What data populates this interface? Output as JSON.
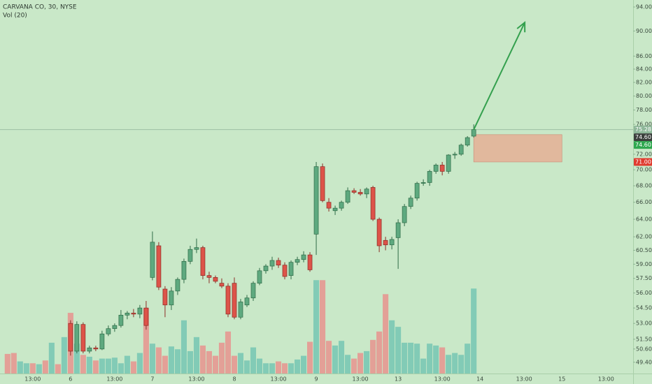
{
  "chart_data": {
    "type": "candlestick",
    "title": "CARVANA CO, 30, NYSE",
    "subtitle": "Vol (20)",
    "log_scale": true,
    "ylim": [
      48.4,
      95.2
    ],
    "xlim": [
      -1.2,
      99.3
    ],
    "vlim": [
      0,
      100
    ],
    "up_color": "#5ea97f",
    "down_color": "#dd5349",
    "up_edge": "#2f6b47",
    "down_edge": "#8c2c25",
    "yticks": [
      {
        "value": 94,
        "label": "94.00"
      },
      {
        "value": 90,
        "label": "90.00"
      },
      {
        "value": 86,
        "label": "86.00"
      },
      {
        "value": 84,
        "label": "84.00"
      },
      {
        "value": 82,
        "label": "82.00"
      },
      {
        "value": 80,
        "label": "80.00"
      },
      {
        "value": 78,
        "label": "78.00"
      },
      {
        "value": 76,
        "label": "76.00"
      },
      {
        "value": 72,
        "label": "72.00"
      },
      {
        "value": 70,
        "label": "70.00"
      },
      {
        "value": 68,
        "label": "68.00"
      },
      {
        "value": 66,
        "label": "66.00"
      },
      {
        "value": 64,
        "label": "64.00"
      },
      {
        "value": 62,
        "label": "62.00"
      },
      {
        "value": 60.5,
        "label": "60.50"
      },
      {
        "value": 59,
        "label": "59.00"
      },
      {
        "value": 57.5,
        "label": "57.50"
      },
      {
        "value": 56,
        "label": "56.00"
      },
      {
        "value": 54.5,
        "label": "54.50"
      },
      {
        "value": 53,
        "label": "53.00"
      },
      {
        "value": 51.5,
        "label": "51.50"
      },
      {
        "value": 50.6,
        "label": "50.60"
      },
      {
        "value": 49.4,
        "label": "49.40"
      }
    ],
    "xticks": [
      {
        "value": 4,
        "label": "13:00"
      },
      {
        "value": 10,
        "label": "6"
      },
      {
        "value": 17,
        "label": "13:00"
      },
      {
        "value": 23,
        "label": "7"
      },
      {
        "value": 30,
        "label": "13:00"
      },
      {
        "value": 36,
        "label": "8"
      },
      {
        "value": 43,
        "label": "13:00"
      },
      {
        "value": 49,
        "label": "9"
      },
      {
        "value": 56,
        "label": "13:00"
      },
      {
        "value": 62,
        "label": "13"
      },
      {
        "value": 69,
        "label": "13:00"
      },
      {
        "value": 75,
        "label": "14"
      },
      {
        "value": 82,
        "label": "13:00"
      },
      {
        "value": 88,
        "label": "15"
      },
      {
        "value": 95,
        "label": "13:00"
      }
    ],
    "open": [
      null,
      null,
      null,
      null,
      null,
      null,
      null,
      null,
      null,
      null,
      53.0,
      50.4,
      52.9,
      50.4,
      50.7,
      50.6,
      52.0,
      52.5,
      52.8,
      53.8,
      54.0,
      53.9,
      54.5,
      57.6,
      61.0,
      56.4,
      54.8,
      56.2,
      57.4,
      59.3,
      60.6,
      60.8,
      57.8,
      57.6,
      57.0,
      56.7,
      57.0,
      53.6,
      54.8,
      55.5,
      57.0,
      58.3,
      58.8,
      59.4,
      58.9,
      57.8,
      59.2,
      59.5,
      60.0,
      62.3,
      70.4,
      66.0,
      65.0,
      65.3,
      66.0,
      67.4,
      67.2,
      67.0,
      67.8,
      64.0,
      61.6,
      61.1,
      61.9,
      63.6,
      65.5,
      66.5,
      68.3,
      68.4,
      69.8,
      70.6,
      69.8,
      71.9,
      72.0,
      73.2,
      74.4
    ],
    "high": [
      null,
      null,
      null,
      null,
      null,
      null,
      null,
      null,
      null,
      null,
      53.3,
      53.2,
      53.1,
      50.9,
      50.9,
      52.3,
      52.8,
      53.0,
      54.3,
      54.2,
      54.4,
      54.8,
      55.2,
      62.6,
      61.4,
      56.7,
      56.6,
      57.6,
      59.6,
      61.0,
      61.8,
      61.0,
      58.2,
      57.8,
      57.5,
      57.0,
      57.6,
      55.4,
      55.8,
      57.2,
      58.6,
      59.0,
      59.8,
      59.7,
      59.2,
      59.4,
      59.8,
      60.4,
      60.3,
      71.0,
      70.8,
      66.5,
      65.6,
      66.2,
      67.8,
      67.7,
      67.6,
      67.8,
      68.0,
      64.2,
      62.0,
      62.0,
      64.0,
      65.8,
      66.8,
      68.5,
      68.8,
      70.0,
      70.8,
      71.0,
      72.0,
      72.3,
      73.4,
      74.4,
      76.0
    ],
    "low": [
      null,
      null,
      null,
      null,
      null,
      null,
      null,
      null,
      null,
      null,
      50.0,
      50.2,
      50.2,
      50.2,
      50.4,
      50.5,
      51.8,
      52.2,
      52.6,
      53.4,
      53.6,
      53.5,
      52.4,
      57.3,
      56.3,
      53.6,
      54.3,
      55.8,
      57.0,
      59.0,
      60.2,
      57.4,
      57.0,
      57.0,
      56.5,
      53.6,
      53.4,
      53.4,
      54.6,
      55.2,
      56.8,
      58.0,
      58.4,
      58.6,
      57.4,
      57.4,
      58.9,
      59.2,
      58.2,
      60.0,
      66.0,
      64.9,
      64.5,
      65.0,
      65.8,
      67.0,
      66.8,
      66.5,
      63.8,
      60.3,
      60.5,
      60.6,
      58.5,
      63.2,
      65.2,
      66.2,
      68.0,
      68.0,
      69.5,
      69.3,
      69.5,
      71.4,
      71.8,
      73.0,
      74.2
    ],
    "close": [
      null,
      null,
      null,
      null,
      null,
      null,
      null,
      null,
      null,
      null,
      50.4,
      52.9,
      50.4,
      50.7,
      50.6,
      52.0,
      52.5,
      52.8,
      53.8,
      54.0,
      53.9,
      54.5,
      52.8,
      61.4,
      56.6,
      54.8,
      56.2,
      57.4,
      59.3,
      60.6,
      60.8,
      57.8,
      57.6,
      57.2,
      56.7,
      53.9,
      53.6,
      55.1,
      55.5,
      57.0,
      58.3,
      58.8,
      59.4,
      58.9,
      57.7,
      59.2,
      59.5,
      60.0,
      58.4,
      70.4,
      66.2,
      65.3,
      65.3,
      66.0,
      67.4,
      67.2,
      67.0,
      67.6,
      64.0,
      61.0,
      61.1,
      61.7,
      63.6,
      65.5,
      66.5,
      68.3,
      68.4,
      69.8,
      70.6,
      69.8,
      71.9,
      72.0,
      73.2,
      74.2,
      75.28
    ],
    "volume": [
      21,
      22,
      13,
      11,
      11,
      10,
      14,
      33,
      10,
      39,
      65,
      32,
      20,
      18,
      14,
      16,
      16,
      17,
      11,
      19,
      13,
      22,
      70,
      32,
      28,
      19,
      29,
      26,
      57,
      24,
      39,
      30,
      24,
      19,
      33,
      45,
      19,
      22,
      14,
      28,
      16,
      11,
      11,
      13,
      11,
      11,
      15,
      19,
      34,
      100,
      100,
      35,
      30,
      35,
      20,
      16,
      22,
      24,
      36,
      45,
      85,
      57,
      50,
      33,
      33,
      32,
      16,
      32,
      30,
      28,
      20,
      22,
      20,
      32,
      91
    ],
    "volume_colors": [
      "#e3a097",
      "#e3a097",
      "#82cbb6",
      "#82cbb6",
      "#e3a097",
      "#82cbb6",
      "#e3a097",
      "#82cbb6",
      "#e3a097",
      "#82cbb6",
      "#e3a097",
      "#82cbb6",
      "#e3a097",
      "#82cbb6",
      "#e3a097",
      "#82cbb6",
      "#82cbb6",
      "#82cbb6",
      "#82cbb6",
      "#82cbb6",
      "#e3a097",
      "#82cbb6",
      "#e3a097",
      "#82cbb6",
      "#e3a097",
      "#e3a097",
      "#82cbb6",
      "#82cbb6",
      "#82cbb6",
      "#82cbb6",
      "#82cbb6",
      "#e3a097",
      "#e3a097",
      "#e3a097",
      "#e3a097",
      "#e3a097",
      "#e3a097",
      "#82cbb6",
      "#82cbb6",
      "#82cbb6",
      "#82cbb6",
      "#82cbb6",
      "#82cbb6",
      "#e3a097",
      "#e3a097",
      "#82cbb6",
      "#82cbb6",
      "#82cbb6",
      "#e3a097",
      "#82cbb6",
      "#e3a097",
      "#e3a097",
      "#82cbb6",
      "#82cbb6",
      "#82cbb6",
      "#e3a097",
      "#e3a097",
      "#82cbb6",
      "#e3a097",
      "#e3a097",
      "#e3a097",
      "#82cbb6",
      "#82cbb6",
      "#82cbb6",
      "#82cbb6",
      "#82cbb6",
      "#82cbb6",
      "#82cbb6",
      "#82cbb6",
      "#e3a097",
      "#82cbb6",
      "#82cbb6",
      "#82cbb6",
      "#82cbb6",
      "#82cbb6"
    ],
    "price_line": {
      "value": 75.28,
      "color": "#9dbfa3"
    },
    "price_labels": [
      {
        "value": 75.28,
        "label": "75.28",
        "color": "#8fb89a"
      },
      {
        "value": 74.6,
        "label": "74.60",
        "color": "#3b3f3c"
      },
      {
        "value": 74.6,
        "label": "74.60",
        "color": "#2fa84f"
      },
      {
        "value": 71.0,
        "label": "71.00",
        "color": "#e03b2f"
      }
    ],
    "box": {
      "x": [
        74,
        88
      ],
      "y": [
        71.0,
        74.6
      ],
      "color": "#e8a88f"
    },
    "arrow": {
      "from": [
        74,
        75.28
      ],
      "to": [
        82.1,
        91.4
      ],
      "color": "#34a04e"
    }
  }
}
